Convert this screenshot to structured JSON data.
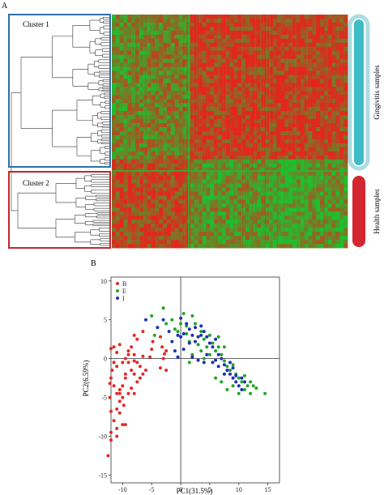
{
  "panel_a": {
    "letter": "A",
    "cluster1_label": "Cluster 1",
    "cluster2_label": "Cluster 2",
    "cluster1_color": "#2f6fa8",
    "cluster2_color": "#c0272d",
    "bar_gingivitis_label": "Gingivitis samples",
    "bar_health_label": "Health samples",
    "bar_gingivitis_color": "#3fbcc6",
    "bar_gingivitis_outer": "#a9dde3",
    "bar_health_color": "#d32630",
    "heat_colors": {
      "high": "#e3261e",
      "low": "#1fbf2e"
    }
  },
  "chart_data": {
    "type": "scatter",
    "panel_letter": "B",
    "xlabel": "PC1(31.5%)",
    "ylabel": "PC2(6.59%)",
    "xlim": [
      -12,
      17
    ],
    "ylim": [
      -16,
      10.5
    ],
    "xticks": [
      -10,
      -5,
      0,
      5,
      10,
      15
    ],
    "yticks": [
      -15,
      -10,
      -5,
      0,
      5,
      10
    ],
    "legend": {
      "placement": "top-left"
    },
    "series": [
      {
        "name": "B",
        "color": "#e02a2a",
        "points": [
          [
            -6.5,
            3.5
          ],
          [
            -3.5,
            2.8
          ],
          [
            -3.2,
            1.5
          ],
          [
            -2.5,
            1.0
          ],
          [
            -2.8,
            0.6
          ],
          [
            -3.0,
            0.0
          ],
          [
            -3.5,
            -1.2
          ],
          [
            -2.5,
            -1.5
          ],
          [
            -4.8,
            2.2
          ],
          [
            -5.0,
            1.2
          ],
          [
            -5.3,
            0.2
          ],
          [
            -6.0,
            -1.5
          ],
          [
            -6.5,
            -2.0
          ],
          [
            -7.0,
            -2.5
          ],
          [
            -7.5,
            -3.0
          ],
          [
            -8.0,
            -2.0
          ],
          [
            -9.5,
            -2.5
          ],
          [
            -10.0,
            -3.5
          ],
          [
            -10.5,
            -4.0
          ],
          [
            -10.0,
            -5.0
          ],
          [
            -9.0,
            -4.5
          ],
          [
            -8.5,
            -3.8
          ],
          [
            -8.0,
            -4.5
          ],
          [
            -7.0,
            -1.0
          ],
          [
            -7.5,
            2.5
          ],
          [
            -8.0,
            3.0
          ],
          [
            -8.5,
            1.5
          ],
          [
            -9.0,
            0.5
          ],
          [
            -9.5,
            0.0
          ],
          [
            -10.0,
            -0.5
          ],
          [
            -9.0,
            1.0
          ],
          [
            -8.0,
            0.5
          ],
          [
            -7.5,
            -0.5
          ],
          [
            -6.5,
            0.3
          ],
          [
            -10.5,
            1.8
          ],
          [
            -11.0,
            0.8
          ],
          [
            -11.5,
            -0.5
          ],
          [
            -11.8,
            -1.5
          ],
          [
            -12.0,
            -2.5
          ],
          [
            -11.5,
            -3.5
          ],
          [
            -11.0,
            -4.5
          ],
          [
            -10.5,
            -5.5
          ],
          [
            -11.0,
            -6.5
          ],
          [
            -12.0,
            -6.8
          ],
          [
            -11.5,
            -8.0
          ],
          [
            -10.5,
            -7.0
          ],
          [
            -10.0,
            -8.5
          ],
          [
            -11.0,
            -9.0
          ],
          [
            -12.0,
            -9.5
          ],
          [
            -11.0,
            -10.0
          ],
          [
            -12.0,
            -10.5
          ],
          [
            -12.5,
            -12.5
          ],
          [
            -9.5,
            -8.5
          ],
          [
            -9.5,
            -2.0
          ],
          [
            -8.5,
            -1.5
          ],
          [
            -9.0,
            -0.5
          ],
          [
            -8.0,
            -0.3
          ],
          [
            -12.0,
            1.3
          ],
          [
            -11.5,
            1.5
          ],
          [
            -11.0,
            -1.0
          ],
          [
            -12.2,
            -3.2
          ],
          [
            -10.5,
            -4.5
          ],
          [
            -12.2,
            -5.0
          ],
          [
            -9.8,
            -6.0
          ]
        ]
      },
      {
        "name": "E",
        "color": "#22a52a",
        "points": [
          [
            -5.0,
            5.5
          ],
          [
            -4.5,
            3.0
          ],
          [
            -3.0,
            6.5
          ],
          [
            -2.5,
            4.5
          ],
          [
            -1.5,
            5.0
          ],
          [
            -1.0,
            3.8
          ],
          [
            -0.5,
            3.5
          ],
          [
            0.0,
            4.5
          ],
          [
            0.5,
            5.8
          ],
          [
            1.0,
            3.2
          ],
          [
            1.5,
            2.2
          ],
          [
            2.0,
            5.5
          ],
          [
            2.5,
            4.5
          ],
          [
            3.0,
            1.8
          ],
          [
            3.5,
            3.5
          ],
          [
            4.0,
            2.5
          ],
          [
            4.5,
            1.5
          ],
          [
            5.0,
            3.0
          ],
          [
            5.5,
            2.0
          ],
          [
            6.0,
            1.0
          ],
          [
            6.5,
            1.5
          ],
          [
            7.0,
            0.5
          ],
          [
            7.5,
            -0.3
          ],
          [
            8.0,
            -1.0
          ],
          [
            8.5,
            -1.5
          ],
          [
            9.0,
            -0.8
          ],
          [
            9.5,
            -2.0
          ],
          [
            10.0,
            -2.5
          ],
          [
            10.5,
            -3.0
          ],
          [
            11.0,
            -2.2
          ],
          [
            11.5,
            -3.5
          ],
          [
            12.0,
            -3.0
          ],
          [
            12.5,
            -3.5
          ],
          [
            13.0,
            -3.8
          ],
          [
            14.5,
            -4.5
          ],
          [
            8.0,
            -4.0
          ],
          [
            7.0,
            -3.0
          ],
          [
            6.0,
            -2.5
          ],
          [
            9.0,
            -3.5
          ],
          [
            10.0,
            -4.5
          ],
          [
            11.0,
            -4.0
          ],
          [
            12.0,
            -4.5
          ],
          [
            3.5,
            1.0
          ],
          [
            4.0,
            0.0
          ],
          [
            5.0,
            0.5
          ],
          [
            2.0,
            0.5
          ],
          [
            1.5,
            -0.5
          ],
          [
            6.5,
            2.8
          ],
          [
            7.5,
            1.5
          ],
          [
            1.0,
            4.2
          ]
        ]
      },
      {
        "name": "I",
        "color": "#1f2fb5",
        "points": [
          [
            -6.0,
            5.0
          ],
          [
            -4.0,
            4.0
          ],
          [
            -3.0,
            5.0
          ],
          [
            -2.0,
            3.5
          ],
          [
            -1.5,
            2.2
          ],
          [
            -1.0,
            1.0
          ],
          [
            -0.5,
            0.2
          ],
          [
            0.0,
            2.8
          ],
          [
            0.0,
            5.2
          ],
          [
            0.5,
            3.2
          ],
          [
            1.0,
            4.5
          ],
          [
            1.5,
            3.8
          ],
          [
            2.0,
            3.0
          ],
          [
            2.5,
            2.2
          ],
          [
            3.0,
            2.8
          ],
          [
            3.5,
            4.2
          ],
          [
            4.0,
            3.5
          ],
          [
            4.5,
            2.8
          ],
          [
            5.0,
            2.0
          ],
          [
            5.5,
            1.5
          ],
          [
            6.0,
            -0.2
          ],
          [
            6.5,
            0.5
          ],
          [
            7.0,
            0.0
          ],
          [
            7.5,
            -0.8
          ],
          [
            8.0,
            -1.5
          ],
          [
            8.5,
            -2.0
          ],
          [
            9.0,
            -2.5
          ],
          [
            9.5,
            -3.0
          ],
          [
            10.0,
            -3.5
          ],
          [
            10.5,
            -4.0
          ],
          [
            11.0,
            -3.0
          ],
          [
            4.5,
            0.5
          ],
          [
            4.0,
            -0.5
          ],
          [
            3.0,
            -0.2
          ],
          [
            2.0,
            0.2
          ],
          [
            5.5,
            -0.5
          ],
          [
            8.5,
            -0.5
          ],
          [
            9.0,
            -1.2
          ],
          [
            6.0,
            2.5
          ],
          [
            3.5,
            3.0
          ],
          [
            1.5,
            2.0
          ],
          [
            0.5,
            1.2
          ],
          [
            -0.5,
            3.0
          ],
          [
            2.5,
            4.0
          ],
          [
            6.5,
            -1.0
          ],
          [
            7.5,
            -2.0
          ],
          [
            9.5,
            -2.2
          ],
          [
            10.5,
            -2.5
          ]
        ]
      }
    ]
  }
}
